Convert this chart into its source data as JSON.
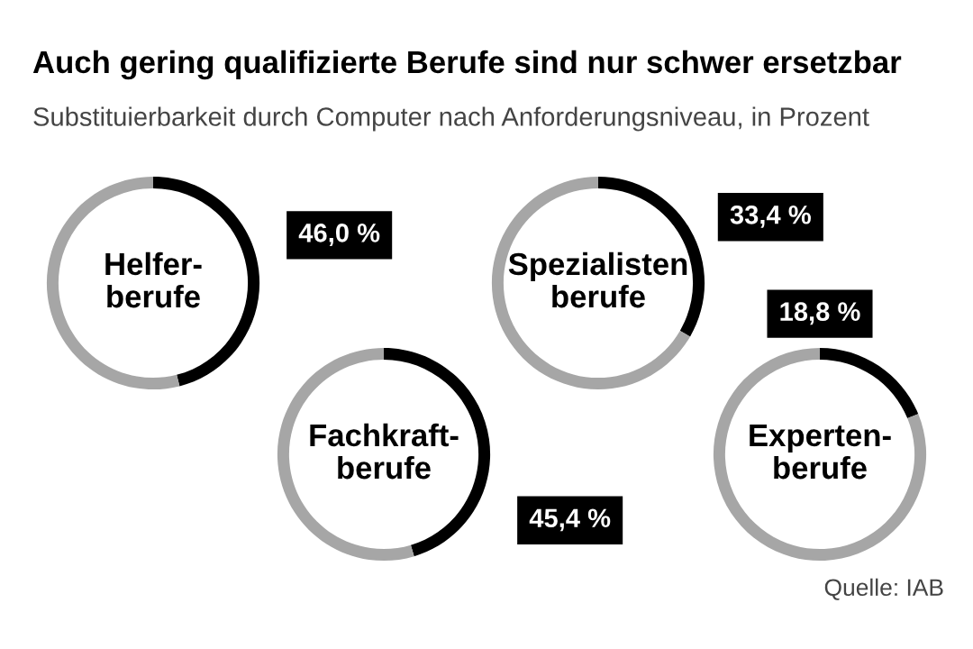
{
  "chart_data": [
    {
      "type": "other",
      "title": "Auch gering qualifizierte Berufe sind nur schwer ersetzbar",
      "subtitle": "Substituierbarkeit durch Computer nach Anforderungsniveau, in Prozent",
      "annotations": [
        "Quelle: IAB"
      ]
    },
    {
      "type": "donut",
      "title": "Helfer-\nberufe",
      "categories": [
        null,
        null
      ],
      "values": [
        46.0,
        54.0
      ],
      "colors": [
        "#000000",
        "#a6a6a6"
      ],
      "value_labels": [
        "46,0 %",
        null
      ]
    },
    {
      "type": "donut",
      "title": "Spezialisten\nberufe",
      "categories": [
        null,
        null
      ],
      "values": [
        33.4,
        66.6
      ],
      "colors": [
        "#000000",
        "#a6a6a6"
      ],
      "value_labels": [
        "33,4 %",
        null
      ]
    },
    {
      "type": "donut",
      "title": "Fachkraft-\nberufe",
      "categories": [
        null,
        null
      ],
      "values": [
        45.4,
        54.6
      ],
      "colors": [
        "#000000",
        "#a6a6a6"
      ],
      "value_labels": [
        "45,4 %",
        null
      ]
    },
    {
      "type": "donut",
      "title": "Experten-\nberufe",
      "categories": [
        null,
        null
      ],
      "values": [
        18.8,
        81.2
      ],
      "colors": [
        "#000000",
        "#a6a6a6"
      ],
      "value_labels": [
        "18,8 %",
        null
      ]
    }
  ]
}
